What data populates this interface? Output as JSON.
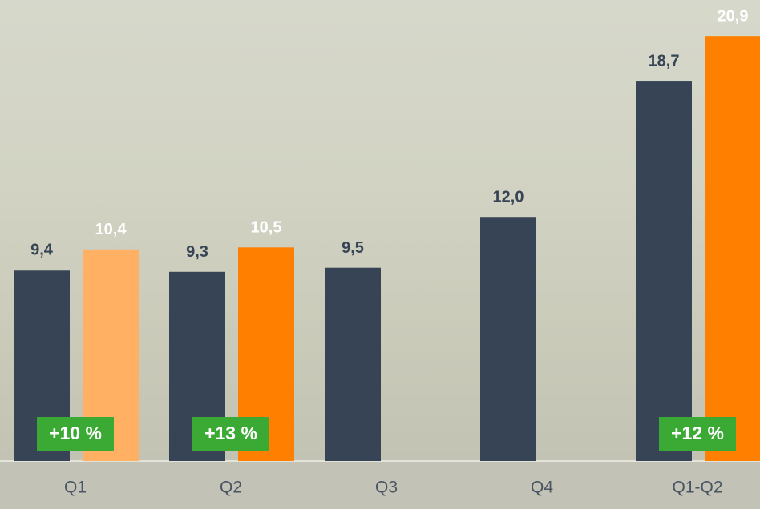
{
  "chart_data": {
    "type": "bar",
    "categories": [
      "Q1",
      "Q2",
      "Q3",
      "Q4",
      "Q1-Q2"
    ],
    "series": [
      {
        "color": "#364455",
        "label_color": "#364455",
        "values": [
          9.4,
          9.3,
          9.5,
          12.0,
          18.7
        ],
        "value_labels": [
          "9,4",
          "9,3",
          "9,5",
          "12,0",
          "18,7"
        ]
      },
      {
        "color": "#ff8000",
        "colors": [
          "#ffb062",
          "#ff8000",
          null,
          null,
          "#ff8000"
        ],
        "label_color": "#ffffff",
        "values": [
          10.4,
          10.5,
          null,
          null,
          20.9
        ],
        "value_labels": [
          "10,4",
          "10,5",
          null,
          null,
          "20,9"
        ]
      }
    ],
    "growth_labels": [
      "+10 %",
      "+13 %",
      null,
      null,
      "+12 %"
    ],
    "growth_color": "#3aaa35",
    "ylim": [
      0,
      22.6
    ]
  }
}
